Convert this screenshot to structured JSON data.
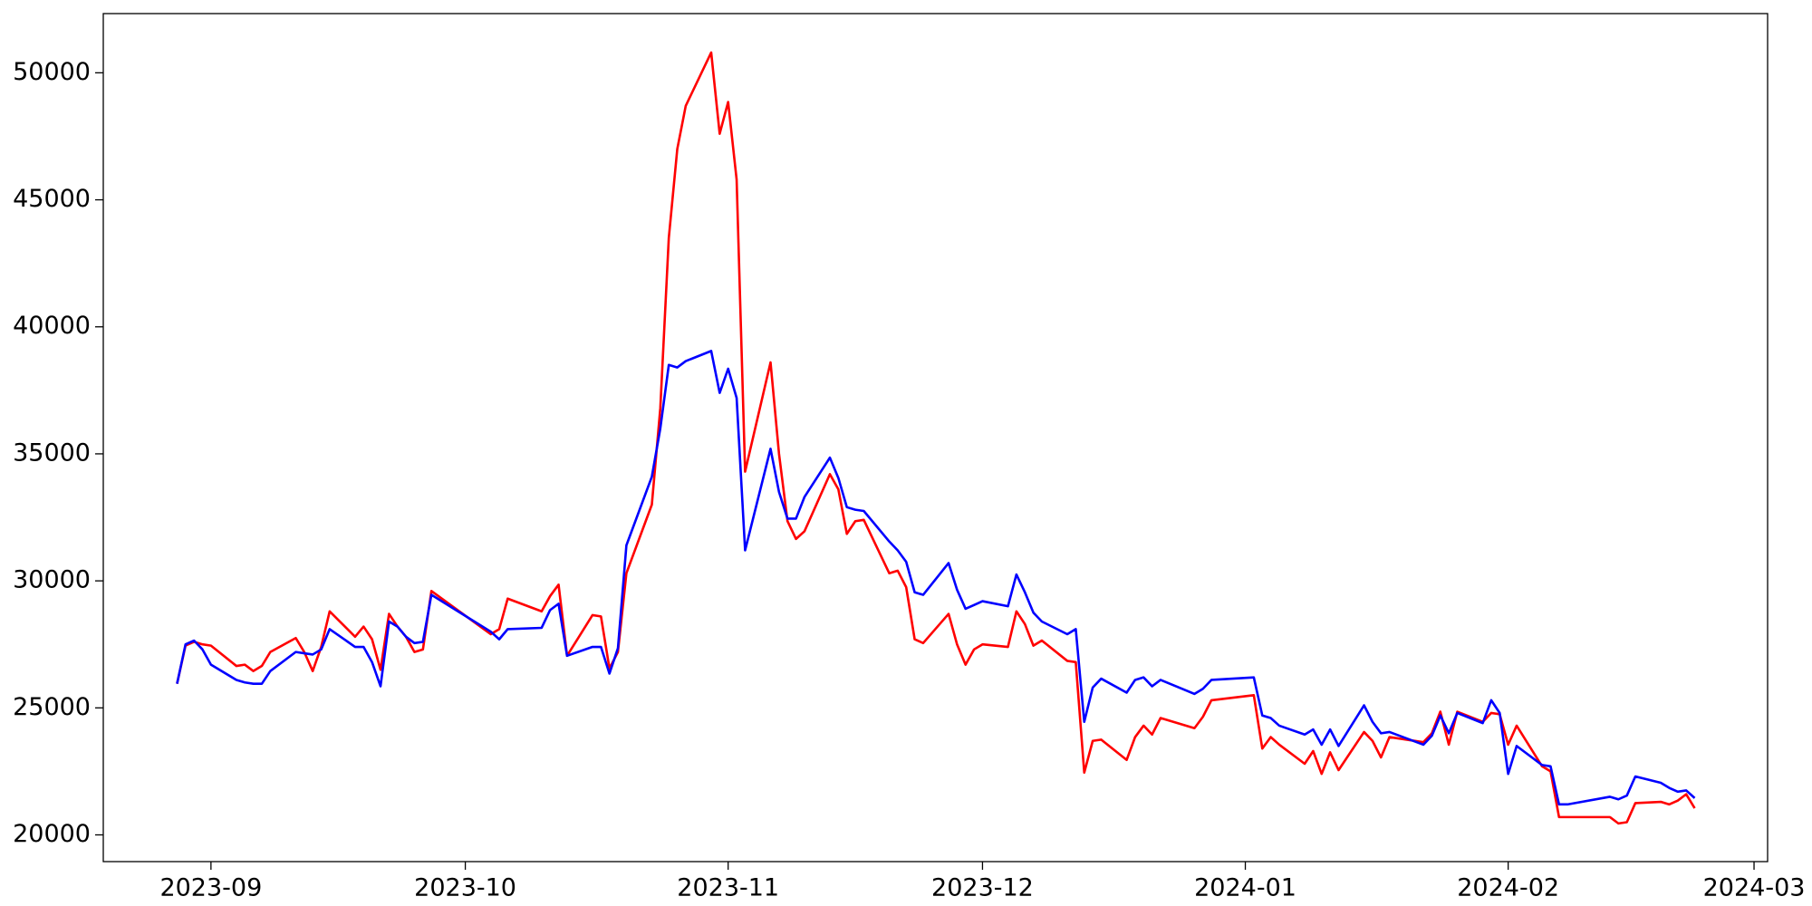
{
  "chart_data": {
    "type": "line",
    "x": [
      -4,
      -3,
      -2,
      -1,
      0,
      3,
      4,
      5,
      6,
      7,
      10,
      11,
      12,
      13,
      14,
      17,
      18,
      19,
      20,
      21,
      22,
      23,
      24,
      25,
      26,
      33,
      34,
      35,
      39,
      40,
      41,
      42,
      45,
      46,
      47,
      48,
      49,
      52,
      53,
      54,
      55,
      56,
      59,
      60,
      61,
      62,
      63,
      66,
      67,
      68,
      69,
      70,
      73,
      74,
      75,
      76,
      77,
      80,
      81,
      82,
      83,
      84,
      87,
      88,
      89,
      90,
      91,
      94,
      95,
      96,
      97,
      98,
      101,
      102,
      103,
      104,
      105,
      108,
      109,
      110,
      111,
      112,
      116,
      117,
      118,
      123,
      124,
      125,
      126,
      129,
      130,
      131,
      132,
      133,
      136,
      137,
      138,
      139,
      143,
      144,
      145,
      146,
      147,
      150,
      151,
      152,
      153,
      154,
      157,
      158,
      159,
      160,
      165,
      166,
      167,
      168,
      171,
      172,
      173,
      174,
      175
    ],
    "series": [
      {
        "color": "red",
        "values": [
          25950,
          27450,
          27600,
          27500,
          27450,
          26650,
          26700,
          26450,
          26650,
          27200,
          27750,
          27200,
          26450,
          27400,
          28800,
          27800,
          28200,
          27700,
          26500,
          28700,
          28200,
          27800,
          27200,
          27300,
          29600,
          27900,
          28100,
          29300,
          28800,
          29400,
          29850,
          27050,
          28650,
          28600,
          26550,
          27200,
          30300,
          33000,
          36800,
          43500,
          47000,
          48700,
          50800,
          47600,
          48850,
          45800,
          34300,
          38600,
          35000,
          32350,
          31650,
          31950,
          34200,
          33600,
          31850,
          32350,
          32400,
          30300,
          30400,
          29750,
          27700,
          27550,
          28700,
          27500,
          26700,
          27300,
          27500,
          27400,
          28800,
          28300,
          27450,
          27650,
          26850,
          26800,
          22450,
          23700,
          23750,
          22950,
          23850,
          24300,
          23950,
          24600,
          24200,
          24650,
          25300,
          25500,
          23400,
          23850,
          23550,
          22800,
          23300,
          22400,
          23250,
          22550,
          24050,
          23700,
          23050,
          23850,
          23650,
          24000,
          24850,
          23550,
          24850,
          24450,
          24800,
          24750,
          23550,
          24300,
          22700,
          22500,
          20700,
          20700,
          20700,
          20450,
          20500,
          21250,
          21300,
          21200,
          21350,
          21600,
          21050
        ]
      },
      {
        "color": "blue",
        "values": [
          25950,
          27500,
          27650,
          27300,
          26700,
          26100,
          26000,
          25950,
          25950,
          26450,
          27200,
          27150,
          27100,
          27300,
          28100,
          27400,
          27400,
          26800,
          25850,
          28400,
          28200,
          27800,
          27550,
          27600,
          29450,
          28000,
          27700,
          28100,
          28150,
          28850,
          29100,
          27050,
          27400,
          27400,
          26350,
          27350,
          31400,
          34100,
          36000,
          38500,
          38400,
          38650,
          39050,
          37400,
          38350,
          37200,
          31200,
          35200,
          33500,
          32450,
          32450,
          33300,
          34850,
          34050,
          32900,
          32800,
          32750,
          31550,
          31200,
          30750,
          29550,
          29450,
          30700,
          29650,
          28900,
          29050,
          29200,
          29000,
          30250,
          29550,
          28750,
          28400,
          27900,
          28100,
          24450,
          25800,
          26150,
          25600,
          26100,
          26200,
          25850,
          26100,
          25550,
          25750,
          26100,
          26200,
          24700,
          24600,
          24300,
          23950,
          24150,
          23550,
          24150,
          23500,
          25100,
          24450,
          24000,
          24050,
          23550,
          23900,
          24700,
          24000,
          24800,
          24400,
          25300,
          24800,
          22400,
          23500,
          22750,
          22700,
          21200,
          21200,
          21500,
          21400,
          21550,
          22300,
          22050,
          21850,
          21700,
          21750,
          21450
        ]
      }
    ],
    "xlim": [
      -12.7,
      183.6
    ],
    "xticks": [
      {
        "value": 0,
        "label": "2023-09"
      },
      {
        "value": 30,
        "label": "2023-10"
      },
      {
        "value": 61,
        "label": "2023-11"
      },
      {
        "value": 91,
        "label": "2023-12"
      },
      {
        "value": 122,
        "label": "2024-01"
      },
      {
        "value": 153,
        "label": "2024-02"
      },
      {
        "value": 182,
        "label": "2024-03"
      }
    ],
    "ylim": [
      18948,
      52331
    ],
    "yticks": [
      20000,
      25000,
      30000,
      35000,
      40000,
      45000,
      50000
    ],
    "grid": false
  }
}
